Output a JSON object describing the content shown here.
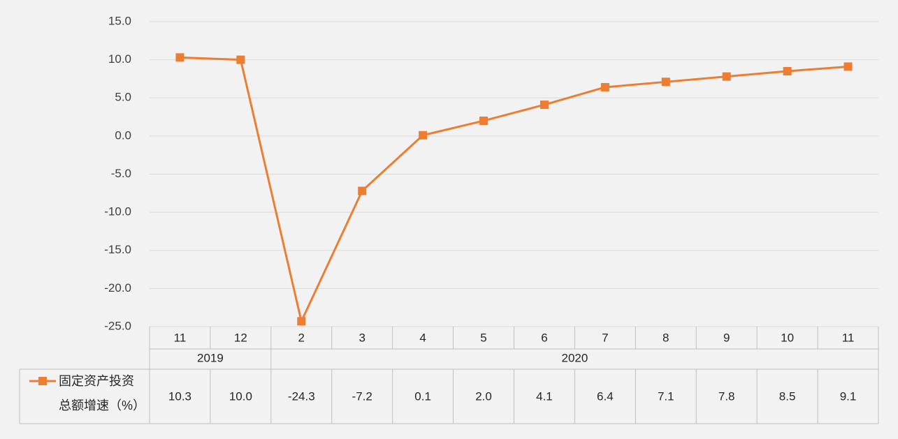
{
  "chart_data": {
    "type": "line",
    "categories": [
      "11",
      "12",
      "2",
      "3",
      "4",
      "5",
      "6",
      "7",
      "8",
      "9",
      "10",
      "11"
    ],
    "groups": [
      {
        "label": "2019",
        "span": [
          0,
          1
        ]
      },
      {
        "label": "2020",
        "span": [
          2,
          11
        ]
      }
    ],
    "series": [
      {
        "name_lines": [
          "固定资产投资",
          "总额增速（%）"
        ],
        "color": "#ed7d31",
        "values": [
          10.3,
          10.0,
          -24.3,
          -7.2,
          0.1,
          2.0,
          4.1,
          6.4,
          7.1,
          7.8,
          8.5,
          9.1
        ],
        "value_labels": [
          "10.3",
          "10.0",
          "-24.3",
          "-7.2",
          "0.1",
          "2.0",
          "4.1",
          "6.4",
          "7.1",
          "7.8",
          "8.5",
          "9.1"
        ]
      }
    ],
    "yticks": [
      "15.0",
      "10.0",
      "5.0",
      "0.0",
      "-5.0",
      "-10.0",
      "-15.0",
      "-20.0",
      "-25.0"
    ],
    "ylim": [
      -25,
      15
    ],
    "grid": true,
    "legend": "data-table",
    "gridColor": "#d9d9d9",
    "tableColor": "#bfbfbf"
  }
}
